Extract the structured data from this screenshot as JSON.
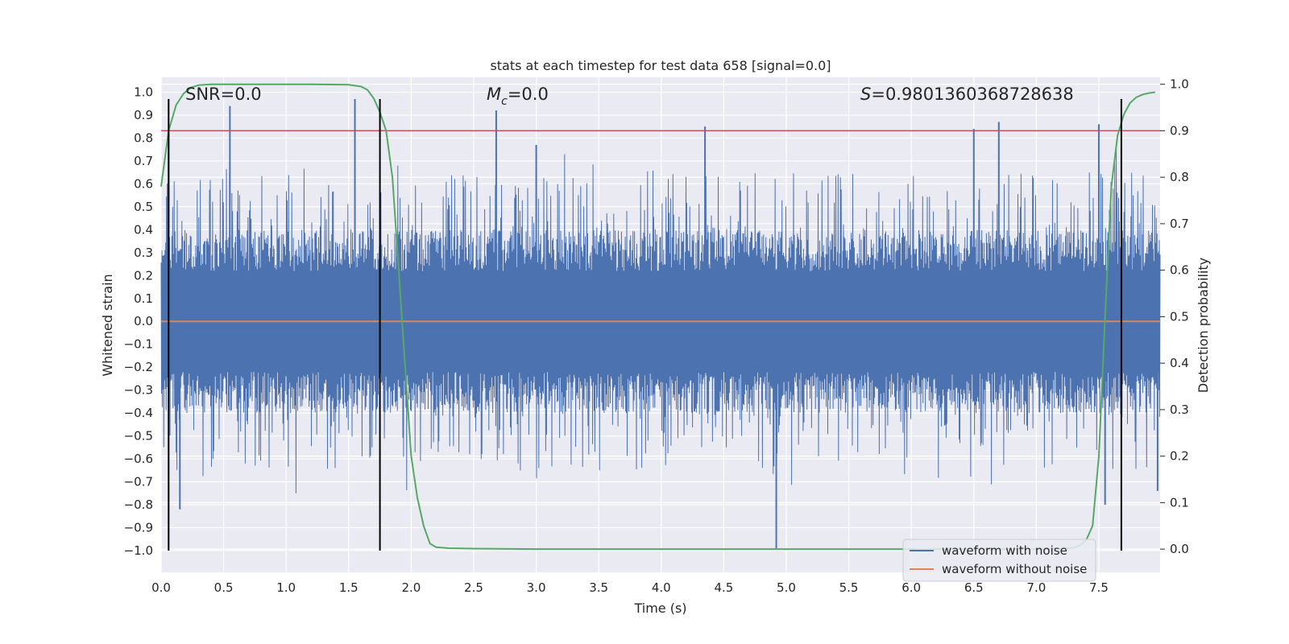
{
  "chart_data": {
    "type": "line",
    "title": "stats at each timestep for test data 658 [signal=0.0]",
    "xlabel": "Time (s)",
    "ylabel_left": "Whitened strain",
    "ylabel_right": "Detection probability",
    "xlim": [
      0.0,
      7.99
    ],
    "ylim_left": [
      -1.095,
      1.065
    ],
    "ylim_right": [
      -0.05,
      1.015
    ],
    "x_ticks": [
      "0.0",
      "0.5",
      "1.0",
      "1.5",
      "2.0",
      "2.5",
      "3.0",
      "3.5",
      "4.0",
      "4.5",
      "5.0",
      "5.5",
      "6.0",
      "6.5",
      "7.0",
      "7.5"
    ],
    "y_left_ticks": [
      "1.0",
      "0.9",
      "0.8",
      "0.7",
      "0.6",
      "0.5",
      "0.4",
      "0.3",
      "0.2",
      "0.1",
      "0.0",
      "−0.1",
      "−0.2",
      "−0.3",
      "−0.4",
      "−0.5",
      "−0.6",
      "−0.7",
      "−0.8",
      "−0.9",
      "−1.0"
    ],
    "y_right_ticks": [
      "1.0",
      "0.9",
      "0.8",
      "0.7",
      "0.6",
      "0.5",
      "0.4",
      "0.3",
      "0.2",
      "0.1",
      "0.0"
    ],
    "grid": true,
    "legend_position": "bottom-right",
    "annotations": {
      "snr": "SNR=0.0",
      "mc_symbol": "M",
      "mc_sub": "c",
      "mc_value": "=0.0",
      "s_symbol": "S",
      "s_value": "=0.9801360368728638"
    },
    "series": [
      {
        "name": "waveform with noise",
        "color": "#4c72b0",
        "axis": "left",
        "description_points": {
          "x": [
            0.06,
            0.15,
            0.55,
            1.55,
            2.68,
            3.0,
            4.35,
            4.92,
            6.5,
            6.7,
            7.5,
            7.55,
            7.97
          ],
          "y": [
            0.84,
            -0.82,
            0.94,
            0.97,
            0.92,
            0.77,
            0.85,
            -0.99,
            0.84,
            0.87,
            0.86,
            -0.8,
            -0.74
          ]
        }
      },
      {
        "name": "waveform without noise",
        "color": "#dd8452",
        "axis": "left",
        "x": [
          0.0,
          7.99
        ],
        "y": [
          0.0,
          0.0
        ]
      },
      {
        "name": "",
        "color": "#55a868",
        "axis": "right",
        "x": [
          0.0,
          0.06,
          0.12,
          0.18,
          0.24,
          0.3,
          0.4,
          0.6,
          0.9,
          1.2,
          1.5,
          1.6,
          1.65,
          1.7,
          1.75,
          1.8,
          1.85,
          1.9,
          1.95,
          2.0,
          2.05,
          2.1,
          2.15,
          2.2,
          2.3,
          2.5,
          3.0,
          4.0,
          5.0,
          6.0,
          7.0,
          7.2,
          7.3,
          7.35,
          7.4,
          7.45,
          7.5,
          7.55,
          7.6,
          7.65,
          7.7,
          7.75,
          7.8,
          7.85,
          7.9,
          7.95
        ],
        "y": [
          0.78,
          0.9,
          0.955,
          0.98,
          0.993,
          0.998,
          1.0,
          1.0,
          1.0,
          1.0,
          0.999,
          0.995,
          0.988,
          0.97,
          0.94,
          0.9,
          0.8,
          0.6,
          0.4,
          0.2,
          0.11,
          0.05,
          0.012,
          0.004,
          0.002,
          0.001,
          0.0,
          0.0,
          0.0,
          0.0,
          0.0,
          0.001,
          0.003,
          0.008,
          0.02,
          0.05,
          0.2,
          0.5,
          0.78,
          0.89,
          0.935,
          0.96,
          0.972,
          0.978,
          0.981,
          0.983
        ]
      }
    ],
    "threshold_line": {
      "color": "#c44e52",
      "axis": "right",
      "y": 0.9
    },
    "vertical_lines": {
      "color": "#000000",
      "x": [
        0.06,
        1.75,
        7.68
      ],
      "ymin": -1.0,
      "ymax": 0.97
    },
    "ylabel_left_color": "#262626",
    "plot_background": "#eaeaf2"
  }
}
